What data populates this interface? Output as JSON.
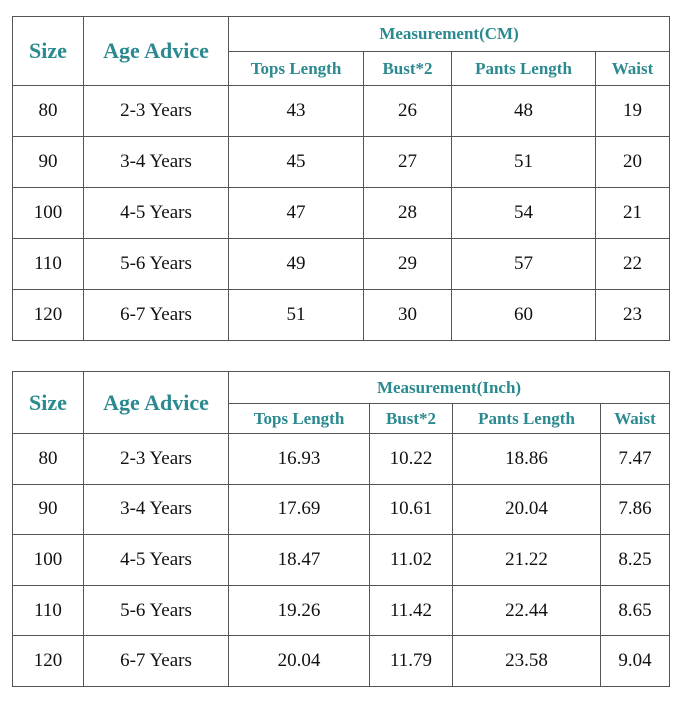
{
  "tables": [
    {
      "headers": {
        "size": "Size",
        "age": "Age Advice",
        "group": "Measurement(CM)",
        "columns": [
          "Tops Length",
          "Bust*2",
          "Pants Length",
          "Waist"
        ]
      },
      "rows": [
        [
          "80",
          "2-3 Years",
          "43",
          "26",
          "48",
          "19"
        ],
        [
          "90",
          "3-4 Years",
          "45",
          "27",
          "51",
          "20"
        ],
        [
          "100",
          "4-5 Years",
          "47",
          "28",
          "54",
          "21"
        ],
        [
          "110",
          "5-6 Years",
          "49",
          "29",
          "57",
          "22"
        ],
        [
          "120",
          "6-7 Years",
          "51",
          "30",
          "60",
          "23"
        ]
      ]
    },
    {
      "headers": {
        "size": "Size",
        "age": "Age Advice",
        "group": "Measurement(Inch)",
        "columns": [
          "Tops Length",
          "Bust*2",
          "Pants Length",
          "Waist"
        ]
      },
      "rows": [
        [
          "80",
          "2-3 Years",
          "16.93",
          "10.22",
          "18.86",
          "7.47"
        ],
        [
          "90",
          "3-4 Years",
          "17.69",
          "10.61",
          "20.04",
          "7.86"
        ],
        [
          "100",
          "4-5 Years",
          "18.47",
          "11.02",
          "21.22",
          "8.25"
        ],
        [
          "110",
          "5-6 Years",
          "19.26",
          "11.42",
          "22.44",
          "8.65"
        ],
        [
          "120",
          "6-7 Years",
          "20.04",
          "11.79",
          "23.58",
          "9.04"
        ]
      ]
    }
  ]
}
